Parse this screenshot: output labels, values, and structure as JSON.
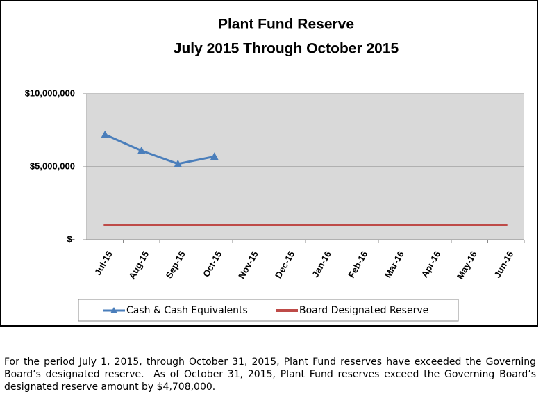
{
  "chart_data": {
    "type": "line",
    "title": "Plant Fund Reserve",
    "subtitle": "July 2015 Through October 2015",
    "categories": [
      "Jul-15",
      "Aug-15",
      "Sep-15",
      "Oct-15",
      "Nov-15",
      "Dec-15",
      "Jan-16",
      "Feb-16",
      "Mar-16",
      "Apr-16",
      "May-16",
      "Jun-16"
    ],
    "series": [
      {
        "name": "Cash & Cash Equivalents",
        "color": "#4a7ebb",
        "marker": "triangle",
        "values": [
          7200000,
          6100000,
          5200000,
          5700000,
          null,
          null,
          null,
          null,
          null,
          null,
          null,
          null
        ]
      },
      {
        "name": "Board Designated Reserve",
        "color": "#be4b48",
        "values": [
          1000000,
          1000000,
          1000000,
          1000000,
          1000000,
          1000000,
          1000000,
          1000000,
          1000000,
          1000000,
          1000000,
          1000000
        ]
      }
    ],
    "ylim": [
      0,
      10000000
    ],
    "yticks": [
      {
        "value": 0,
        "label": "$-"
      },
      {
        "value": 5000000,
        "label": "$5,000,000"
      },
      {
        "value": 10000000,
        "label": "$10,000,000"
      }
    ],
    "grid": true,
    "legend": "bottom"
  },
  "paragraph": "For the period July 1, 2015, through October 31, 2015, Plant Fund reserves have exceeded the Governing Board’s designated reserve.  As of October 31, 2015, Plant Fund reserves exceed the Governing Board’s designated reserve amount by $4,708,000."
}
